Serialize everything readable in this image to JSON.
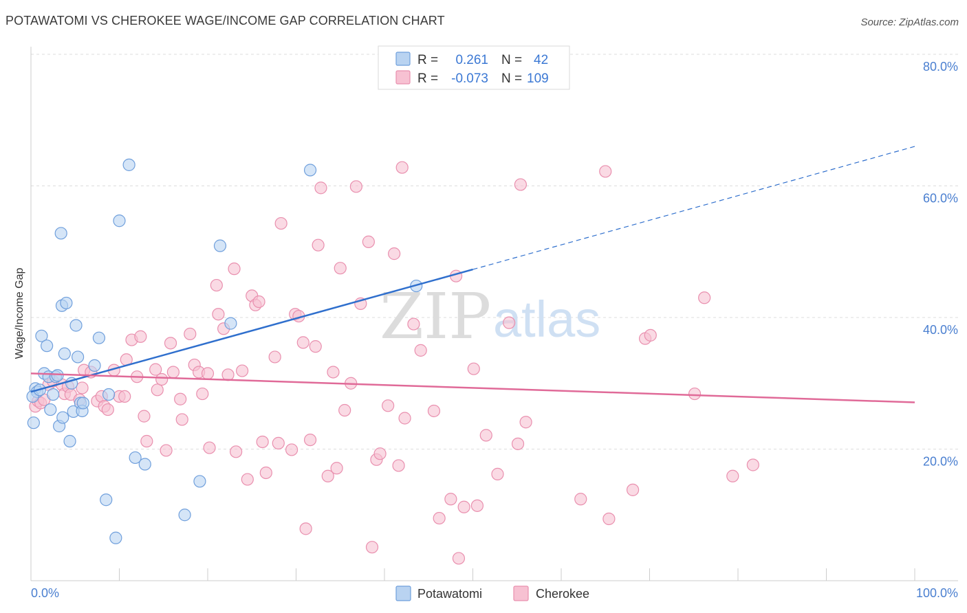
{
  "title": "POTAWATOMI VS CHEROKEE WAGE/INCOME GAP CORRELATION CHART",
  "source": "Source: ZipAtlas.com",
  "watermark": {
    "zip": "ZIP",
    "atlas": "atlas"
  },
  "legend": {
    "rows": [
      {
        "r_label": "R =",
        "r_value": "0.261",
        "n_label": "N =",
        "n_value": "42"
      },
      {
        "r_label": "R =",
        "r_value": "-0.073",
        "n_label": "N =",
        "n_value": "109"
      }
    ]
  },
  "colors": {
    "potawatomi_fill": "#b9d3f1",
    "potawatomi_stroke": "#6f9fdc",
    "potawatomi_line": "#2f6fcd",
    "cherokee_fill": "#f7c1d2",
    "cherokee_stroke": "#e98fae",
    "cherokee_line": "#e06a98",
    "tick_text": "#4a7fd0",
    "grid": "#dddddd"
  },
  "chart_data": {
    "type": "scatter",
    "title": "POTAWATOMI VS CHEROKEE WAGE/INCOME GAP CORRELATION CHART",
    "xlabel": "",
    "ylabel": "Wage/Income Gap",
    "xlim": [
      0,
      100
    ],
    "ylim": [
      0,
      80
    ],
    "x_tick_labels": [
      "0.0%",
      "100.0%"
    ],
    "y_tick_labels": [
      "20.0%",
      "40.0%",
      "60.0%",
      "80.0%"
    ],
    "y_ticks": [
      20,
      40,
      60,
      80
    ],
    "grid": true,
    "legend_position": "top-center",
    "series": [
      {
        "name": "Potawatomi",
        "points": [
          [
            0.3,
            24.0
          ],
          [
            0.5,
            29.2
          ],
          [
            0.7,
            28.7
          ],
          [
            1.2,
            37.2
          ],
          [
            1.5,
            31.5
          ],
          [
            1.8,
            35.7
          ],
          [
            2.0,
            31.0
          ],
          [
            2.2,
            26.0
          ],
          [
            2.5,
            28.3
          ],
          [
            2.8,
            31.0
          ],
          [
            3.0,
            31.2
          ],
          [
            3.2,
            23.5
          ],
          [
            3.4,
            52.8
          ],
          [
            3.5,
            41.8
          ],
          [
            3.6,
            24.8
          ],
          [
            3.8,
            34.5
          ],
          [
            4.0,
            42.2
          ],
          [
            4.4,
            21.2
          ],
          [
            4.6,
            30.0
          ],
          [
            4.8,
            25.7
          ],
          [
            5.1,
            38.8
          ],
          [
            5.3,
            34.0
          ],
          [
            5.6,
            27.0
          ],
          [
            5.8,
            25.8
          ],
          [
            5.9,
            27.0
          ],
          [
            7.2,
            32.7
          ],
          [
            7.7,
            36.9
          ],
          [
            8.5,
            12.3
          ],
          [
            8.8,
            28.3
          ],
          [
            9.6,
            6.5
          ],
          [
            10.0,
            54.7
          ],
          [
            11.1,
            63.2
          ],
          [
            11.8,
            18.7
          ],
          [
            12.9,
            17.7
          ],
          [
            17.4,
            10.0
          ],
          [
            19.1,
            15.1
          ],
          [
            21.4,
            50.9
          ],
          [
            22.6,
            39.1
          ],
          [
            31.6,
            62.4
          ],
          [
            43.6,
            44.8
          ],
          [
            0.2,
            28.0
          ],
          [
            1.0,
            29.0
          ]
        ]
      },
      {
        "name": "Cherokee",
        "points": [
          [
            0.5,
            26.5
          ],
          [
            0.8,
            27.3
          ],
          [
            1.1,
            27.0
          ],
          [
            1.5,
            27.5
          ],
          [
            2.0,
            29.8
          ],
          [
            2.5,
            30.3
          ],
          [
            3.5,
            29.8
          ],
          [
            3.8,
            28.4
          ],
          [
            4.2,
            29.5
          ],
          [
            4.5,
            28.3
          ],
          [
            5.5,
            27.5
          ],
          [
            5.8,
            29.3
          ],
          [
            6.0,
            32.0
          ],
          [
            6.8,
            31.7
          ],
          [
            7.5,
            27.3
          ],
          [
            8.0,
            28.0
          ],
          [
            8.3,
            26.5
          ],
          [
            8.7,
            26.0
          ],
          [
            9.4,
            32.0
          ],
          [
            10.0,
            28.0
          ],
          [
            10.6,
            28.0
          ],
          [
            10.8,
            33.6
          ],
          [
            11.4,
            36.6
          ],
          [
            12.0,
            31.0
          ],
          [
            12.4,
            37.1
          ],
          [
            12.8,
            25.0
          ],
          [
            13.1,
            21.2
          ],
          [
            14.1,
            32.1
          ],
          [
            14.3,
            29.0
          ],
          [
            14.8,
            30.6
          ],
          [
            15.3,
            19.8
          ],
          [
            15.8,
            36.1
          ],
          [
            16.1,
            31.7
          ],
          [
            16.9,
            27.6
          ],
          [
            17.1,
            24.5
          ],
          [
            18.0,
            37.5
          ],
          [
            18.5,
            32.8
          ],
          [
            19.0,
            31.7
          ],
          [
            19.4,
            28.4
          ],
          [
            20.0,
            31.5
          ],
          [
            20.2,
            20.2
          ],
          [
            21.0,
            44.9
          ],
          [
            21.2,
            40.5
          ],
          [
            21.8,
            38.3
          ],
          [
            22.3,
            31.3
          ],
          [
            23.0,
            47.4
          ],
          [
            23.2,
            19.6
          ],
          [
            23.9,
            31.9
          ],
          [
            24.5,
            15.4
          ],
          [
            25.0,
            43.3
          ],
          [
            25.4,
            41.9
          ],
          [
            25.8,
            42.4
          ],
          [
            26.2,
            21.1
          ],
          [
            26.6,
            16.4
          ],
          [
            27.6,
            34.0
          ],
          [
            28.0,
            20.9
          ],
          [
            28.3,
            54.3
          ],
          [
            29.5,
            19.9
          ],
          [
            29.9,
            40.5
          ],
          [
            30.3,
            40.2
          ],
          [
            30.8,
            36.2
          ],
          [
            31.1,
            7.9
          ],
          [
            31.6,
            21.4
          ],
          [
            32.2,
            35.6
          ],
          [
            32.5,
            51.0
          ],
          [
            32.8,
            59.7
          ],
          [
            33.6,
            15.9
          ],
          [
            34.2,
            31.7
          ],
          [
            34.6,
            17.1
          ],
          [
            35.0,
            47.5
          ],
          [
            35.5,
            25.9
          ],
          [
            36.2,
            30.0
          ],
          [
            36.8,
            59.9
          ],
          [
            37.3,
            42.1
          ],
          [
            38.2,
            51.5
          ],
          [
            38.6,
            5.1
          ],
          [
            39.1,
            18.4
          ],
          [
            39.5,
            19.3
          ],
          [
            40.4,
            26.6
          ],
          [
            41.1,
            49.7
          ],
          [
            41.6,
            17.5
          ],
          [
            42.0,
            62.8
          ],
          [
            42.3,
            24.7
          ],
          [
            43.3,
            39.0
          ],
          [
            44.1,
            35.0
          ],
          [
            45.6,
            25.8
          ],
          [
            46.2,
            9.5
          ],
          [
            47.5,
            12.4
          ],
          [
            48.1,
            46.3
          ],
          [
            48.4,
            3.4
          ],
          [
            49.0,
            11.2
          ],
          [
            50.1,
            32.2
          ],
          [
            50.5,
            11.4
          ],
          [
            51.5,
            22.1
          ],
          [
            52.8,
            16.2
          ],
          [
            54.1,
            39.2
          ],
          [
            55.1,
            20.8
          ],
          [
            55.4,
            60.2
          ],
          [
            56.0,
            24.1
          ],
          [
            62.2,
            12.4
          ],
          [
            65.0,
            62.2
          ],
          [
            65.4,
            9.4
          ],
          [
            68.1,
            13.8
          ],
          [
            69.5,
            36.8
          ],
          [
            70.1,
            37.3
          ],
          [
            75.1,
            28.4
          ],
          [
            76.2,
            43.0
          ],
          [
            79.4,
            15.9
          ],
          [
            81.7,
            17.6
          ]
        ]
      }
    ],
    "trend_lines": [
      {
        "name": "Potawatomi",
        "x": [
          0,
          50
        ],
        "y": [
          28.7,
          47.3
        ],
        "dashed_extension_to": [
          100,
          66.0
        ]
      },
      {
        "name": "Cherokee",
        "x": [
          0,
          100
        ],
        "y": [
          31.5,
          27.1
        ]
      }
    ]
  }
}
